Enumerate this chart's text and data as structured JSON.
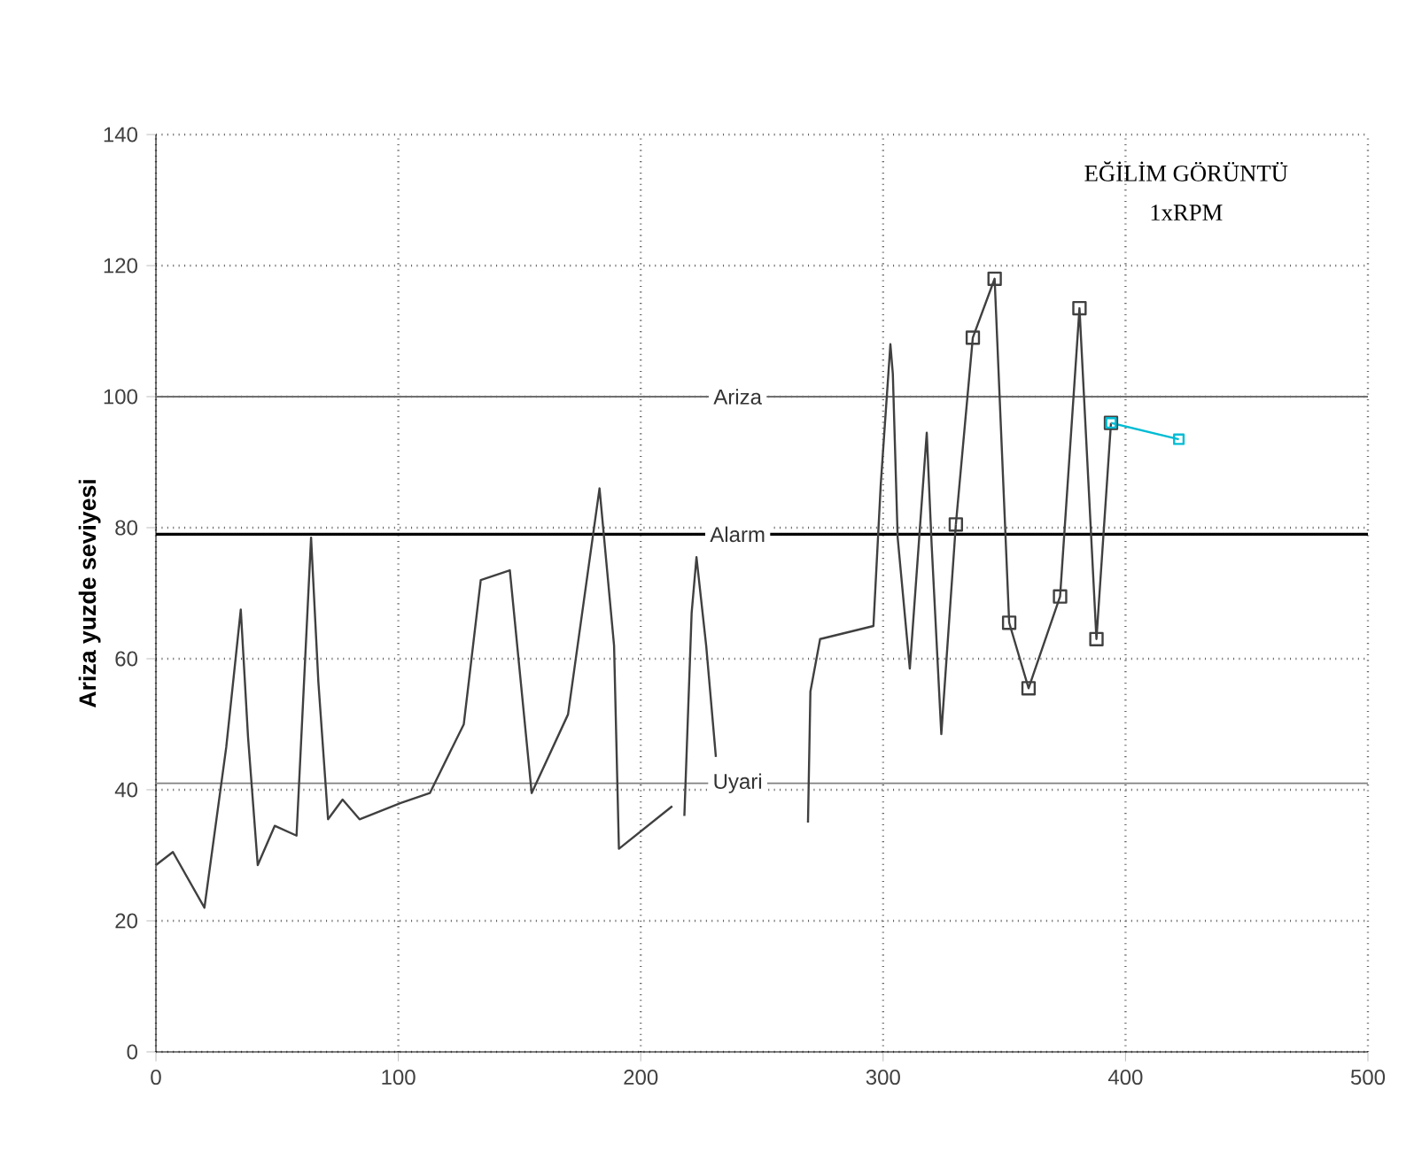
{
  "chart_data": {
    "type": "line",
    "title": "EĞİLİM GÖRÜNTÜ",
    "subtitle": "1xRPM",
    "ylabel": "Ariza yuzde seviyesi",
    "xlim": [
      0,
      500
    ],
    "ylim": [
      0,
      140
    ],
    "xticks": [
      0,
      100,
      200,
      300,
      400,
      500
    ],
    "yticks": [
      0,
      20,
      40,
      60,
      80,
      100,
      120,
      140
    ],
    "grid": true,
    "line_style": "solid",
    "series": [
      {
        "color": "#404040",
        "marker": "none",
        "x": [
          0,
          7,
          20,
          29,
          35,
          38,
          42,
          49,
          58,
          64,
          67,
          71,
          77,
          84,
          101,
          113,
          127,
          134,
          146,
          155,
          170,
          183,
          189,
          191,
          213,
          215,
          218,
          221,
          223,
          227,
          231,
          250,
          269,
          270,
          274,
          296,
          299,
          303,
          304,
          306,
          311,
          318,
          320,
          324,
          330
        ],
        "values": [
          28.5,
          30.5,
          22,
          46.5,
          67.5,
          48,
          28.5,
          34.5,
          33,
          78.5,
          56.5,
          35.5,
          38.5,
          35.5,
          38,
          39.5,
          50,
          72,
          73.5,
          39.5,
          51.5,
          86,
          62,
          31,
          37.5,
          null,
          36,
          67,
          75.5,
          62,
          45,
          null,
          35,
          55,
          63,
          65,
          86.5,
          108,
          103.5,
          78.5,
          58.5,
          94.5,
          77.5,
          48.5,
          80.5
        ]
      },
      {
        "color": "#404040",
        "marker": "square",
        "x": [
          330,
          337,
          346,
          352,
          360,
          373,
          381,
          388,
          394
        ],
        "values": [
          80.5,
          109,
          118,
          65.5,
          55.5,
          69.5,
          113.5,
          63,
          96
        ]
      },
      {
        "color": "#00bcd4",
        "marker": "square",
        "x": [
          394,
          422
        ],
        "values": [
          96,
          93.5
        ]
      }
    ],
    "ref_lines": [
      {
        "axis": "y",
        "value": 100,
        "label": "Ariza",
        "color": "#707070"
      },
      {
        "axis": "y",
        "value": 79,
        "label": "Alarm",
        "color": "#000000"
      },
      {
        "axis": "y",
        "value": 41,
        "label": "Uyari",
        "color": "#808080"
      }
    ]
  }
}
